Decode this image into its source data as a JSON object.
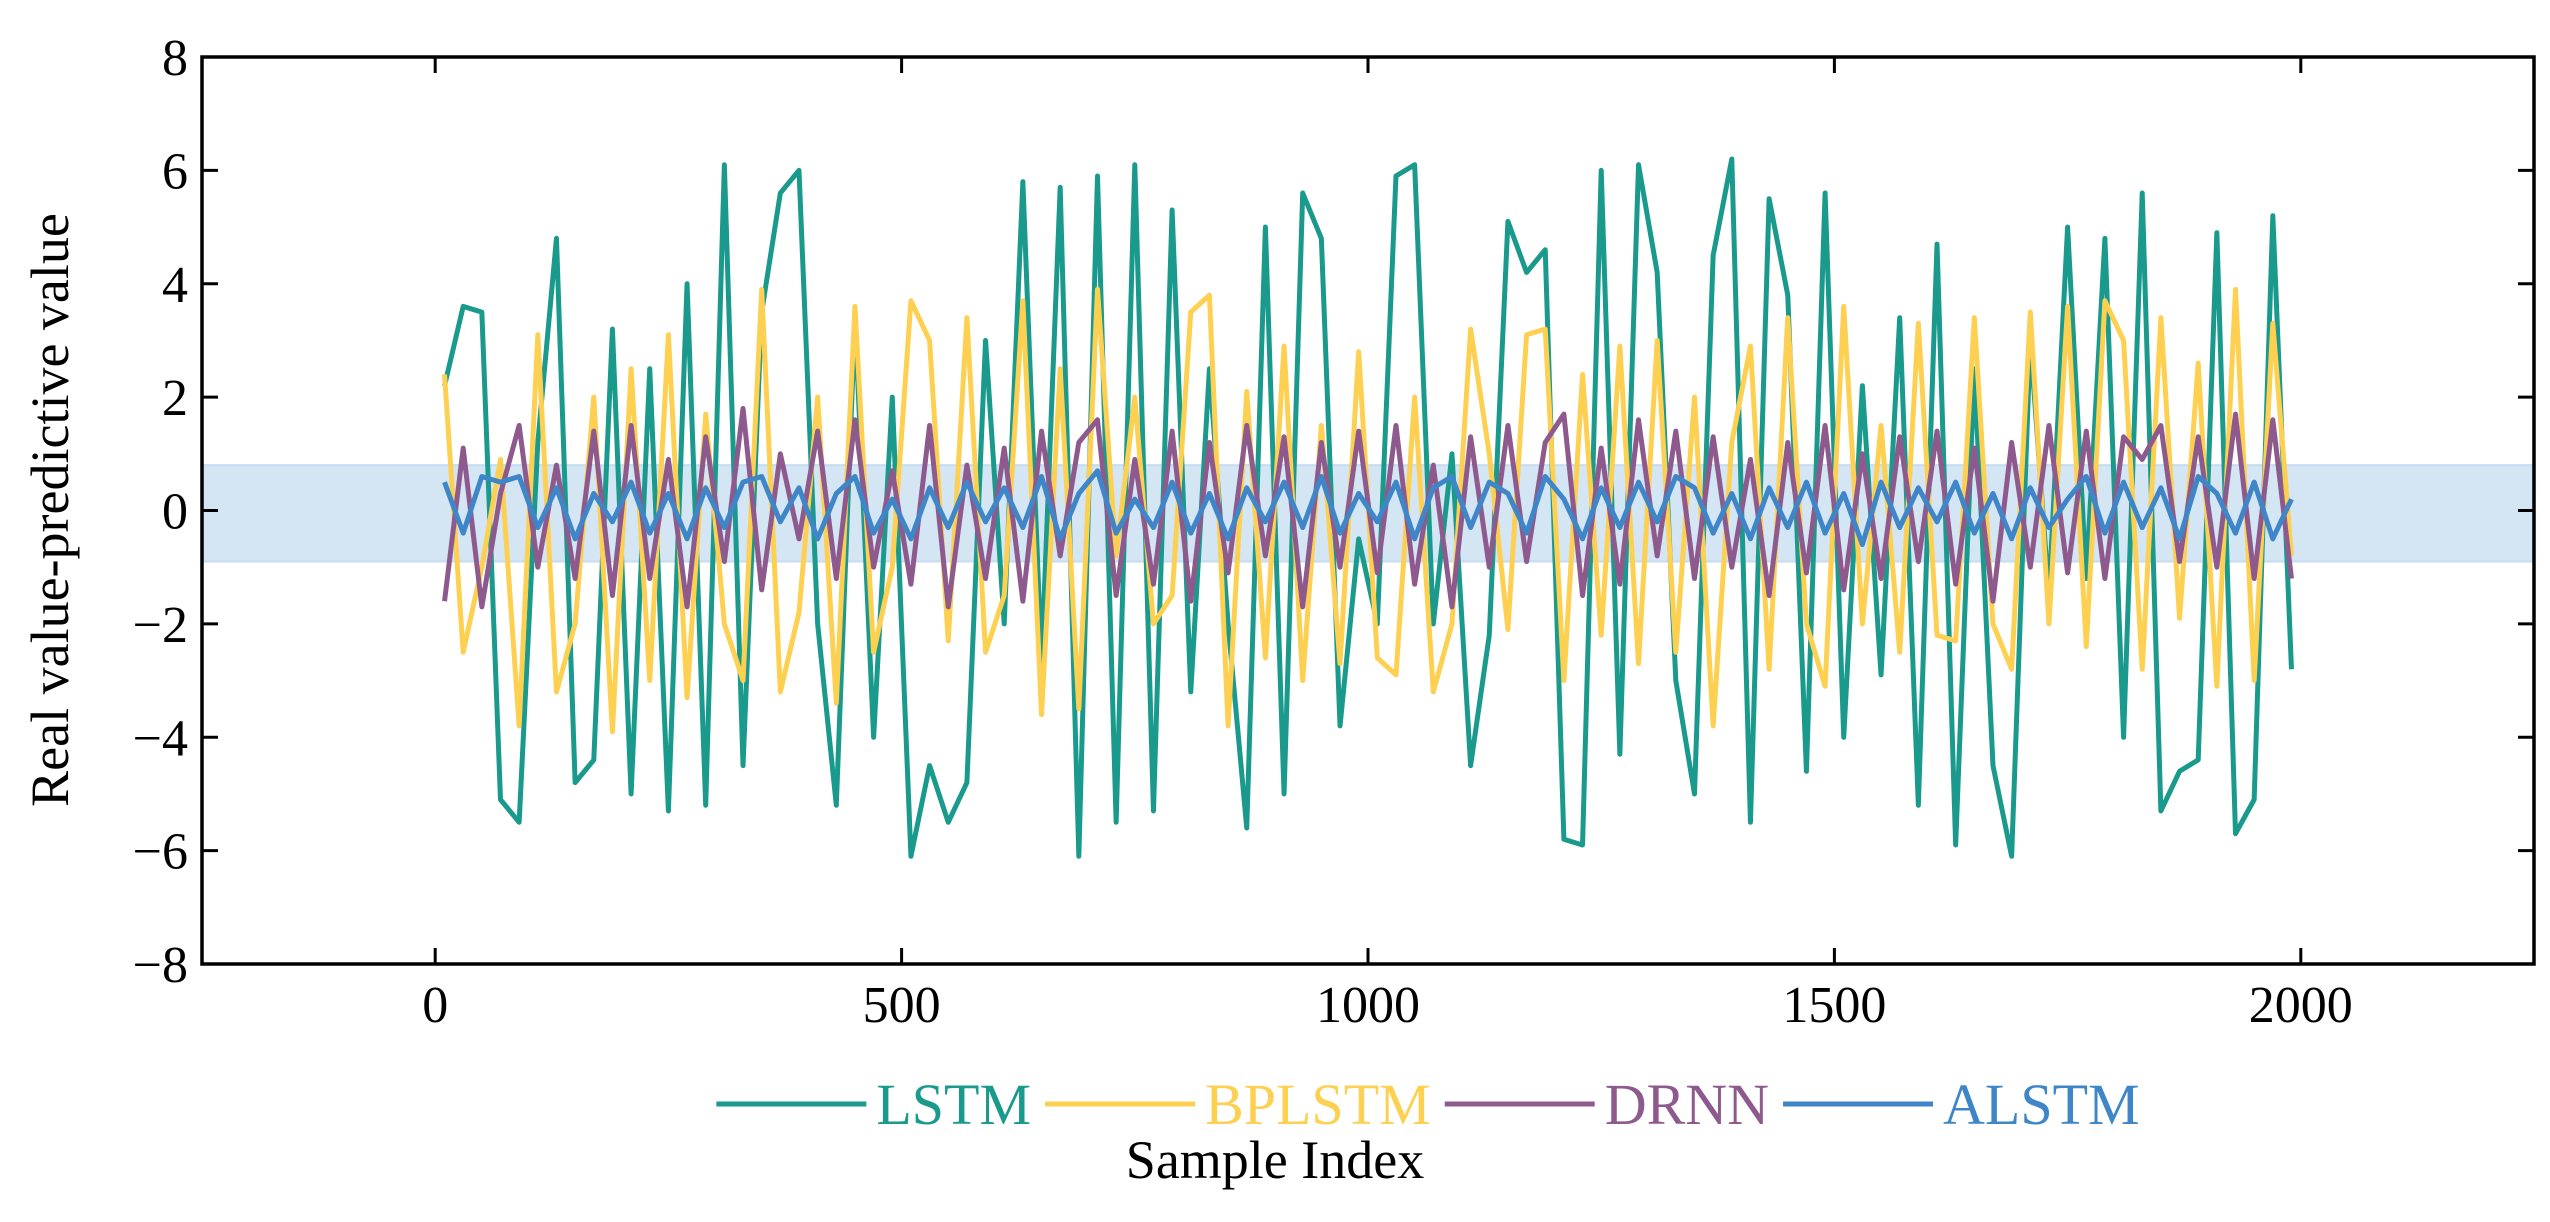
{
  "chart_data": {
    "type": "line",
    "x_label": "Sample Index",
    "y_label": "Real value-predictive value",
    "xlim": [
      -250,
      2250
    ],
    "ylim": [
      -8,
      8
    ],
    "xticks": [
      0,
      500,
      1000,
      1500,
      2000
    ],
    "yticks": [
      {
        "value": -8,
        "label": "−8"
      },
      {
        "value": -6,
        "label": "−6"
      },
      {
        "value": -4,
        "label": "−4"
      },
      {
        "value": -2,
        "label": "−2"
      },
      0,
      2,
      4,
      6,
      8
    ],
    "band": [
      -0.9,
      0.8
    ],
    "band_color": "#c6dcf0",
    "legend": "bottom",
    "x": [
      10,
      30,
      50,
      70,
      90,
      110,
      130,
      150,
      170,
      190,
      210,
      230,
      250,
      270,
      290,
      310,
      330,
      350,
      370,
      390,
      410,
      430,
      450,
      470,
      490,
      510,
      530,
      550,
      570,
      590,
      610,
      630,
      650,
      670,
      690,
      710,
      730,
      750,
      770,
      790,
      810,
      830,
      850,
      870,
      890,
      910,
      930,
      950,
      970,
      990,
      1010,
      1030,
      1050,
      1070,
      1090,
      1110,
      1130,
      1150,
      1170,
      1190,
      1210,
      1230,
      1250,
      1270,
      1290,
      1310,
      1330,
      1350,
      1370,
      1390,
      1410,
      1430,
      1450,
      1470,
      1490,
      1510,
      1530,
      1550,
      1570,
      1590,
      1610,
      1630,
      1650,
      1670,
      1690,
      1710,
      1730,
      1750,
      1770,
      1790,
      1810,
      1830,
      1850,
      1870,
      1890,
      1910,
      1930,
      1950,
      1970,
      1990
    ],
    "series": [
      {
        "name": "LSTM",
        "color": "#1a9a8c",
        "values": [
          2.2,
          3.6,
          3.5,
          -5.1,
          -5.5,
          1.2,
          4.8,
          -4.8,
          -4.4,
          3.2,
          -5.0,
          2.5,
          -5.3,
          4.0,
          -5.2,
          6.1,
          -4.5,
          3.5,
          5.6,
          6.0,
          -2.0,
          -5.2,
          3.4,
          -4.0,
          2.0,
          -6.1,
          -4.5,
          -5.5,
          -4.8,
          3.0,
          -2.0,
          5.8,
          -2.7,
          5.7,
          -6.1,
          5.9,
          -5.5,
          6.1,
          -5.3,
          5.3,
          -3.2,
          2.5,
          -2.0,
          -5.6,
          5.0,
          -5.0,
          5.6,
          4.8,
          -3.8,
          -0.5,
          -2.0,
          5.9,
          6.1,
          -2.0,
          1.0,
          -4.5,
          -2.2,
          5.1,
          4.2,
          4.6,
          -5.8,
          -5.9,
          6.0,
          -4.3,
          6.1,
          4.2,
          -3.0,
          -5.0,
          4.5,
          6.2,
          -5.5,
          5.5,
          3.8,
          -4.6,
          5.6,
          -4.0,
          2.2,
          -2.9,
          3.4,
          -5.2,
          4.7,
          -5.9,
          2.5,
          -4.5,
          -6.1,
          3.0,
          -1.5,
          5.0,
          -1.2,
          4.8,
          -4.0,
          5.6,
          -5.3,
          -4.6,
          -4.4,
          4.9,
          -5.7,
          -5.1,
          5.2,
          -2.8
        ]
      },
      {
        "name": "BPLSTM",
        "color": "#fdd052",
        "values": [
          2.4,
          -2.5,
          -1.0,
          0.9,
          -3.8,
          3.1,
          -3.2,
          -2.0,
          2.0,
          -3.9,
          2.5,
          -3.0,
          3.1,
          -3.3,
          1.7,
          -2.0,
          -3.0,
          3.9,
          -3.2,
          -1.8,
          2.0,
          -3.4,
          3.6,
          -2.5,
          -1.0,
          3.7,
          3.0,
          -2.3,
          3.4,
          -2.5,
          -1.5,
          3.7,
          -3.6,
          2.5,
          -3.5,
          3.9,
          -0.8,
          2.0,
          -2.0,
          -1.5,
          3.5,
          3.8,
          -3.8,
          2.1,
          -2.6,
          2.9,
          -3.0,
          1.5,
          -2.7,
          2.8,
          -2.6,
          -2.9,
          2.0,
          -3.2,
          -2.0,
          3.2,
          1.0,
          -2.1,
          3.1,
          3.2,
          -3.0,
          2.4,
          -2.2,
          2.9,
          -2.7,
          3.0,
          -2.5,
          2.0,
          -3.8,
          1.2,
          2.9,
          -2.8,
          3.4,
          -2.0,
          -3.1,
          3.6,
          -2.0,
          1.5,
          -2.5,
          3.3,
          -2.2,
          -2.3,
          3.4,
          -2.0,
          -2.8,
          3.5,
          -2.0,
          3.6,
          -2.4,
          3.7,
          3.0,
          -2.8,
          3.4,
          -1.9,
          2.6,
          -3.1,
          3.9,
          -3.0,
          3.3,
          -0.8
        ]
      },
      {
        "name": "DRNN",
        "color": "#8e5a8e",
        "values": [
          -1.6,
          1.1,
          -1.7,
          0.3,
          1.5,
          -1.0,
          0.8,
          -1.2,
          1.4,
          -1.5,
          1.5,
          -1.2,
          0.9,
          -1.7,
          1.3,
          -0.9,
          1.8,
          -1.4,
          1.0,
          -0.5,
          1.4,
          -1.2,
          1.6,
          -1.0,
          0.7,
          -1.3,
          1.5,
          -1.7,
          0.8,
          -1.2,
          1.1,
          -1.6,
          1.4,
          -0.8,
          1.2,
          1.6,
          -1.5,
          0.9,
          -1.3,
          1.4,
          -1.6,
          1.2,
          -1.1,
          1.5,
          -0.8,
          1.3,
          -1.7,
          1.2,
          -1.0,
          1.4,
          -1.1,
          1.5,
          -1.3,
          0.8,
          -1.7,
          1.3,
          -1.0,
          1.5,
          -0.9,
          1.2,
          1.7,
          -1.5,
          1.1,
          -1.3,
          1.6,
          -0.8,
          1.4,
          -1.2,
          1.3,
          -1.0,
          0.9,
          -1.5,
          1.2,
          -1.1,
          1.5,
          -1.4,
          1.0,
          -1.2,
          1.3,
          -0.9,
          1.4,
          -1.3,
          1.1,
          -1.6,
          1.2,
          -1.0,
          1.5,
          -1.1,
          1.4,
          -1.2,
          1.3,
          0.9,
          1.5,
          -0.9,
          1.3,
          -1.0,
          1.7,
          -1.2,
          1.6,
          -1.2
        ]
      },
      {
        "name": "ALSTM",
        "color": "#3f86c8",
        "values": [
          0.5,
          -0.4,
          0.6,
          0.5,
          0.6,
          -0.3,
          0.4,
          -0.5,
          0.3,
          -0.2,
          0.5,
          -0.4,
          0.3,
          -0.5,
          0.4,
          -0.3,
          0.5,
          0.6,
          -0.2,
          0.4,
          -0.5,
          0.3,
          0.6,
          -0.4,
          0.2,
          -0.5,
          0.4,
          -0.3,
          0.5,
          -0.2,
          0.4,
          -0.3,
          0.6,
          -0.5,
          0.3,
          0.7,
          -0.4,
          0.2,
          -0.3,
          0.5,
          -0.4,
          0.3,
          -0.5,
          0.4,
          -0.2,
          0.5,
          -0.3,
          0.6,
          -0.4,
          0.3,
          -0.2,
          0.5,
          -0.5,
          0.4,
          0.6,
          -0.3,
          0.5,
          0.3,
          -0.4,
          0.6,
          0.2,
          -0.5,
          0.4,
          -0.3,
          0.5,
          -0.2,
          0.6,
          0.4,
          -0.4,
          0.3,
          -0.5,
          0.4,
          -0.3,
          0.5,
          -0.4,
          0.3,
          -0.6,
          0.5,
          -0.3,
          0.4,
          -0.2,
          0.5,
          -0.4,
          0.3,
          -0.5,
          0.4,
          -0.3,
          0.2,
          0.6,
          -0.4,
          0.5,
          -0.3,
          0.4,
          -0.5,
          0.6,
          0.3,
          -0.4,
          0.5,
          -0.5,
          0.2
        ]
      }
    ]
  }
}
